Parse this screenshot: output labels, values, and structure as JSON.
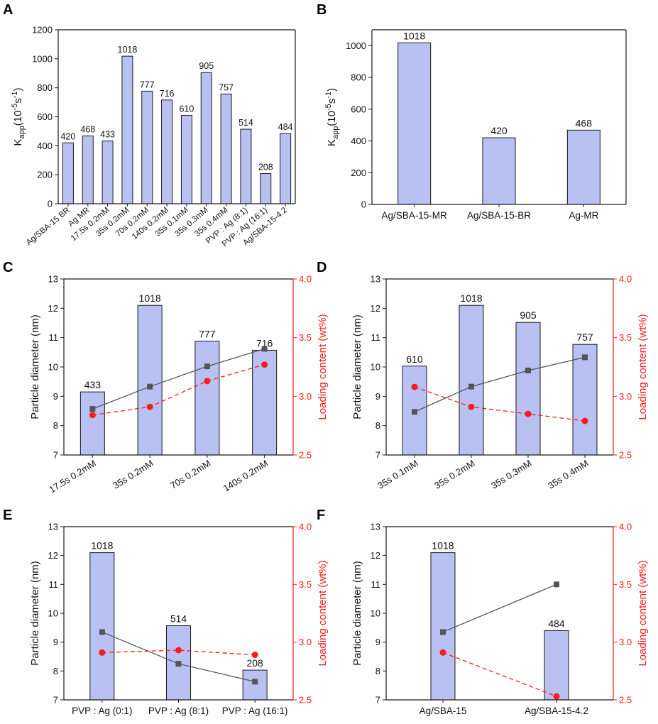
{
  "colors": {
    "bar_fill": "#b8c1f2",
    "bar_stroke": "#1a1a1a",
    "diameter_line": "#555555",
    "loading_line": "#ff1a1a",
    "axis": "#1a1a1a",
    "right_axis": "#ff1a1a"
  },
  "chart_data": [
    {
      "panel": "A",
      "type": "bar",
      "categories": [
        "Ag/SBA-15 BR",
        "Ag MR",
        "17.5s 0.2mM",
        "35s 0.2mM",
        "70s 0.2mM",
        "140s 0.2mM",
        "35s 0.1mM",
        "35s 0.3mM",
        "35s 0.4mM",
        "PVP : Ag (8:1)",
        "PVP : Ag (16:1)",
        "Ag/SBA-15-4.2"
      ],
      "values": [
        420,
        468,
        433,
        1018,
        777,
        716,
        610,
        905,
        757,
        514,
        208,
        484
      ],
      "value_labels": [
        "420",
        "468",
        "433",
        "1018",
        "777",
        "716",
        "610",
        "905",
        "757",
        "514",
        "208",
        "484"
      ],
      "ylabel": {
        "base": "K",
        "sub": "app",
        "mid": "(10",
        "sup1": "-5",
        "s": "s",
        "sup2": "-1",
        "close": ")"
      },
      "ylim": [
        0,
        1200
      ],
      "yticks": [
        0,
        200,
        400,
        600,
        800,
        1000,
        1200
      ]
    },
    {
      "panel": "B",
      "type": "bar",
      "categories": [
        "Ag/SBA-15-MR",
        "Ag/SBA-15-BR",
        "Ag-MR"
      ],
      "values": [
        1018,
        420,
        468
      ],
      "value_labels": [
        "1018",
        "420",
        "468"
      ],
      "ylabel": {
        "base": "K",
        "sub": "app",
        "mid": "(10",
        "sup1": "-5",
        "s": "s",
        "sup2": "-1",
        "close": ")"
      },
      "ylim": [
        0,
        1100
      ],
      "yticks": [
        0,
        200,
        400,
        600,
        800,
        1000
      ]
    },
    {
      "panel": "C",
      "type": "bar",
      "categories": [
        "17.5s 0.2mM",
        "35s 0.2mM",
        "70s 0.2mM",
        "140s 0.2mM"
      ],
      "bar_heights": [
        9.15,
        12.1,
        10.88,
        10.57
      ],
      "value_labels": [
        "433",
        "1018",
        "777",
        "716"
      ],
      "series": [
        {
          "name": "Particle diameter",
          "axis": "left",
          "values": [
            8.57,
            9.33,
            10.02,
            10.62
          ]
        },
        {
          "name": "Loading content",
          "axis": "right",
          "values": [
            2.84,
            2.91,
            3.13,
            3.27
          ]
        }
      ],
      "ylabel": "Particle diameter (nm)",
      "y2label": "Loading content (wt%)",
      "ylim": [
        7,
        13
      ],
      "yticks": [
        "7",
        "8",
        "9",
        "10",
        "11",
        "12",
        "13"
      ],
      "y2lim": [
        2.5,
        4.0
      ],
      "y2ticks": [
        "2.5",
        "3.0",
        "3.5",
        "4.0"
      ]
    },
    {
      "panel": "D",
      "type": "bar",
      "categories": [
        "35s 0.1mM",
        "35s 0.2mM",
        "35s 0.3mM",
        "35s 0.4mM"
      ],
      "bar_heights": [
        10.03,
        12.1,
        11.52,
        10.77
      ],
      "value_labels": [
        "610",
        "1018",
        "905",
        "757"
      ],
      "series": [
        {
          "name": "Particle diameter",
          "axis": "left",
          "values": [
            8.47,
            9.33,
            9.88,
            10.33
          ]
        },
        {
          "name": "Loading content",
          "axis": "right",
          "values": [
            3.08,
            2.91,
            2.85,
            2.79
          ]
        }
      ],
      "ylabel": "Particle diameter (nm)",
      "y2label": "Loading content (wt%)",
      "ylim": [
        7,
        13
      ],
      "yticks": [
        "7",
        "8",
        "9",
        "10",
        "11",
        "12",
        "13"
      ],
      "y2lim": [
        2.5,
        4.0
      ],
      "y2ticks": [
        "2.5",
        "3.0",
        "3.5",
        "4.0"
      ]
    },
    {
      "panel": "E",
      "type": "bar",
      "categories": [
        "PVP : Ag (0:1)",
        "PVP : Ag (8:1)",
        "PVP : Ag (16:1)"
      ],
      "bar_heights": [
        12.1,
        9.57,
        8.03
      ],
      "value_labels": [
        "1018",
        "514",
        "208"
      ],
      "series": [
        {
          "name": "Particle diameter",
          "axis": "left",
          "values": [
            9.35,
            8.25,
            7.63
          ]
        },
        {
          "name": "Loading content",
          "axis": "right",
          "values": [
            2.91,
            2.93,
            2.89
          ]
        }
      ],
      "ylabel": "Particle diameter (nm)",
      "y2label": "Loading content (wt%)",
      "ylim": [
        7,
        13
      ],
      "yticks": [
        "7",
        "8",
        "9",
        "10",
        "11",
        "12",
        "13"
      ],
      "y2lim": [
        2.5,
        4.0
      ],
      "y2ticks": [
        "2.5",
        "3.0",
        "3.5",
        "4.0"
      ]
    },
    {
      "panel": "F",
      "type": "bar",
      "categories": [
        "Ag/SBA-15",
        "Ag/SBA-15-4.2"
      ],
      "bar_heights": [
        12.1,
        9.4
      ],
      "value_labels": [
        "1018",
        "484"
      ],
      "series": [
        {
          "name": "Particle diameter",
          "axis": "left",
          "values": [
            9.35,
            11.0
          ]
        },
        {
          "name": "Loading content",
          "axis": "right",
          "values": [
            2.91,
            2.53
          ]
        }
      ],
      "ylabel": "Particle diameter (nm)",
      "y2label": "Loading content (wt%)",
      "ylim": [
        7,
        13
      ],
      "yticks": [
        "7",
        "8",
        "9",
        "10",
        "11",
        "12",
        "13"
      ],
      "y2lim": [
        2.5,
        4.0
      ],
      "y2ticks": [
        "2.5",
        "3.0",
        "3.5",
        "4.0"
      ]
    }
  ]
}
